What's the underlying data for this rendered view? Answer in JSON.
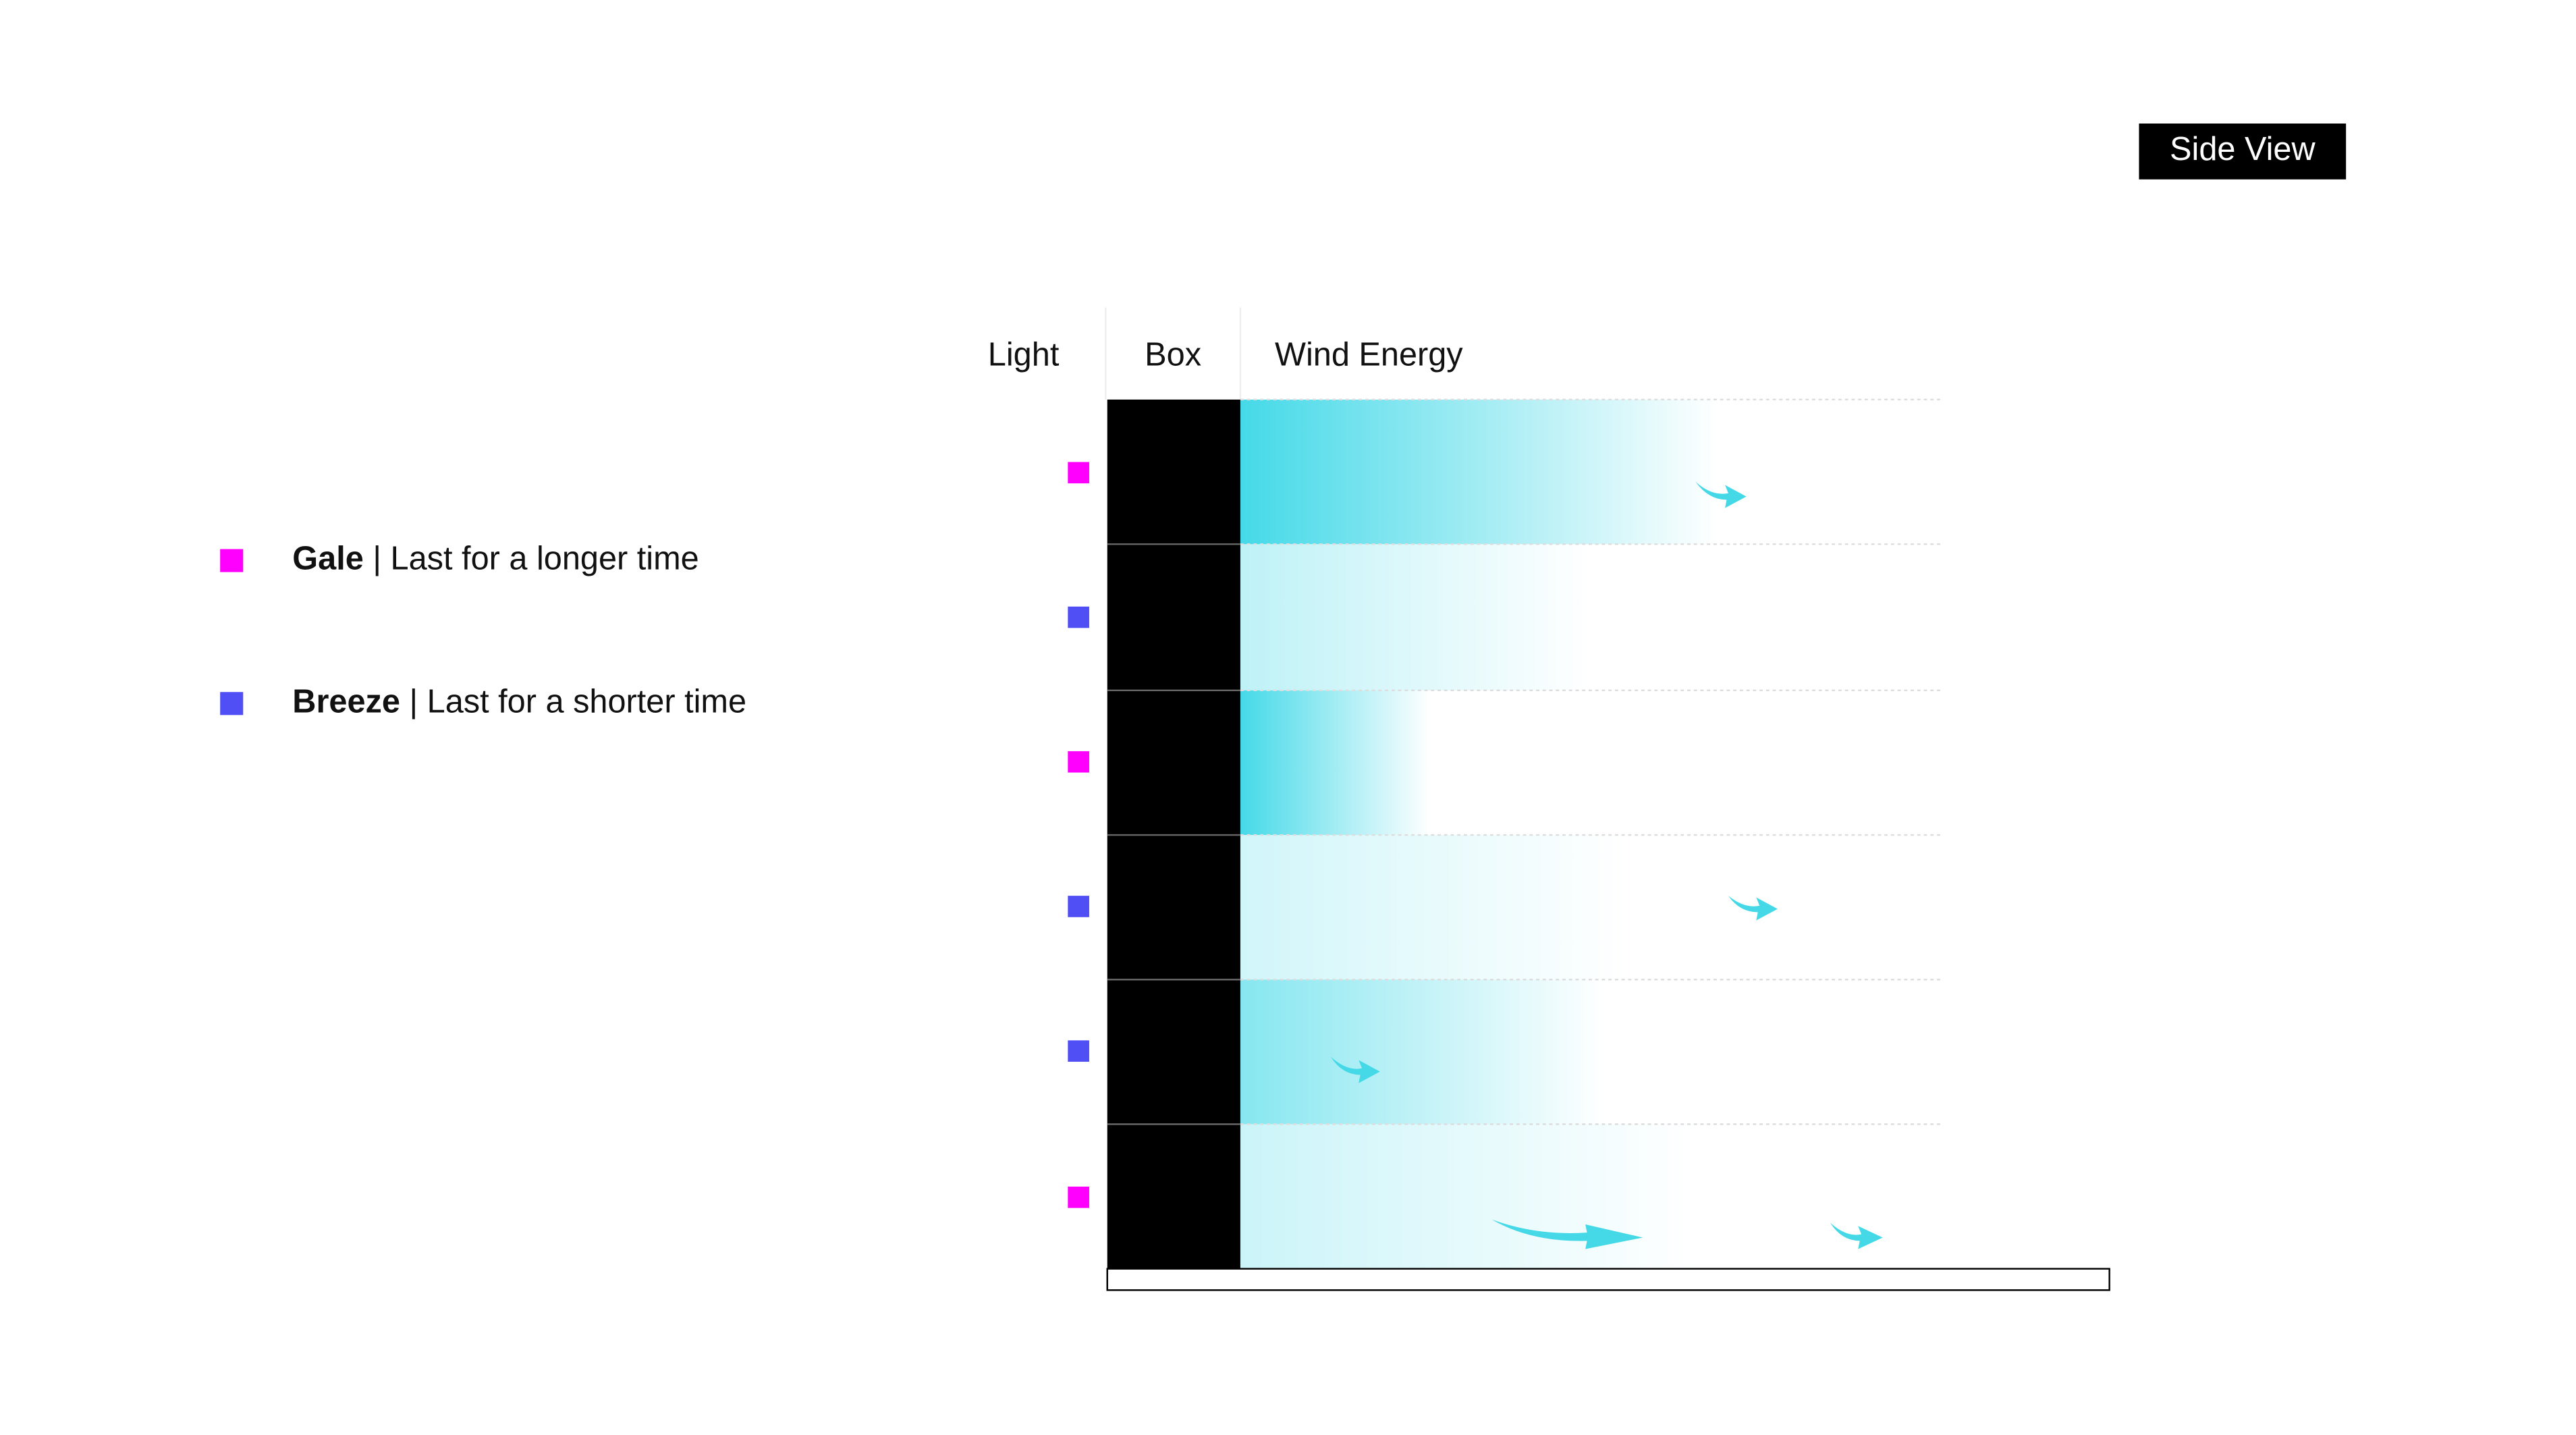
{
  "header": {
    "title": "Side View"
  },
  "legend": [
    {
      "name": "Gale",
      "description": "| Last for a longer time"
    },
    {
      "name": "Breeze",
      "description": "| Last for a shorter time"
    }
  ],
  "table": {
    "columns": [
      "Light",
      "Box",
      "Wind Energy"
    ]
  }
}
